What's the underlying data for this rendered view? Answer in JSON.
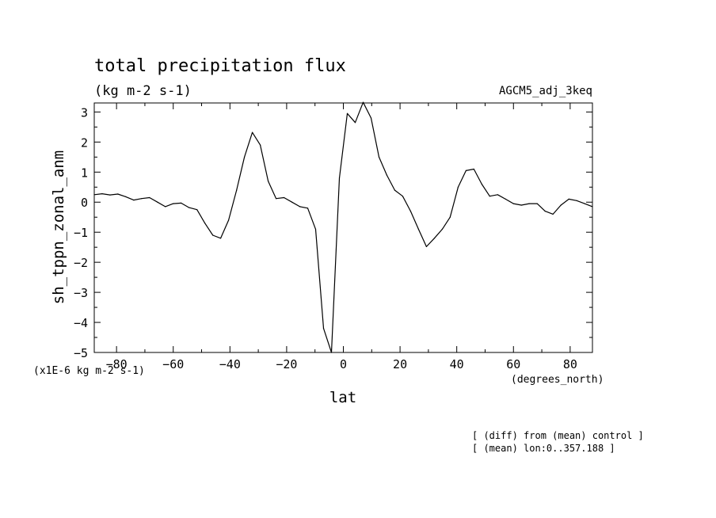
{
  "chart_data": {
    "type": "line",
    "title": "total precipitation flux",
    "units": "(kg m-2 s-1)",
    "dataset_label": "AGCM5_adj_3keq",
    "ylabel": "sh_tppn_zonal_anm",
    "xlabel": "lat",
    "x_units": "(degrees_north)",
    "y_scale_note": "(x1E-6 kg m-2 s-1)",
    "footnotes": [
      "[ (diff) from (mean) control ]",
      "[ (mean) lon:0..357.188 ]"
    ],
    "xlim": [
      -87.86,
      87.86
    ],
    "ylim": [
      -5,
      3.3
    ],
    "x_ticks": [
      -80,
      -60,
      -40,
      -20,
      0,
      20,
      40,
      60,
      80
    ],
    "y_ticks": [
      3,
      2,
      1,
      0,
      -1,
      -2,
      -3,
      -4,
      -5
    ],
    "series": [
      {
        "x": [
          -87.86,
          -85.1,
          -82.31,
          -79.53,
          -76.74,
          -73.95,
          -71.16,
          -68.37,
          -65.58,
          -62.79,
          -60.0,
          -57.21,
          -54.42,
          -51.63,
          -48.84,
          -46.05,
          -43.26,
          -40.47,
          -37.67,
          -34.88,
          -32.09,
          -29.3,
          -26.51,
          -23.72,
          -20.93,
          -18.14,
          -15.35,
          -12.56,
          -9.77,
          -6.98,
          -4.19,
          -1.4,
          1.4,
          4.19,
          6.98,
          9.77,
          12.56,
          15.35,
          18.14,
          20.93,
          23.72,
          26.51,
          29.3,
          32.09,
          34.88,
          37.67,
          40.47,
          43.26,
          46.05,
          48.84,
          51.63,
          54.42,
          57.21,
          60.0,
          62.79,
          65.58,
          68.37,
          71.16,
          73.95,
          76.74,
          79.53,
          82.31,
          85.1,
          87.86
        ],
        "y": [
          0.25,
          0.28,
          0.24,
          0.27,
          0.18,
          0.07,
          0.12,
          0.15,
          0.0,
          -0.15,
          -0.05,
          -0.03,
          -0.18,
          -0.25,
          -0.7,
          -1.1,
          -1.2,
          -0.6,
          0.4,
          1.5,
          2.32,
          1.9,
          0.7,
          0.12,
          0.15,
          0.0,
          -0.15,
          -0.2,
          -0.9,
          -4.2,
          -5.0,
          0.8,
          2.95,
          2.65,
          3.32,
          2.8,
          1.5,
          0.9,
          0.4,
          0.2,
          -0.3,
          -0.9,
          -1.48,
          -1.2,
          -0.9,
          -0.5,
          0.5,
          1.05,
          1.1,
          0.6,
          0.2,
          0.25,
          0.1,
          -0.05,
          -0.1,
          -0.05,
          -0.05,
          -0.3,
          -0.4,
          -0.1,
          0.1,
          0.05,
          -0.05,
          -0.15
        ]
      }
    ]
  }
}
